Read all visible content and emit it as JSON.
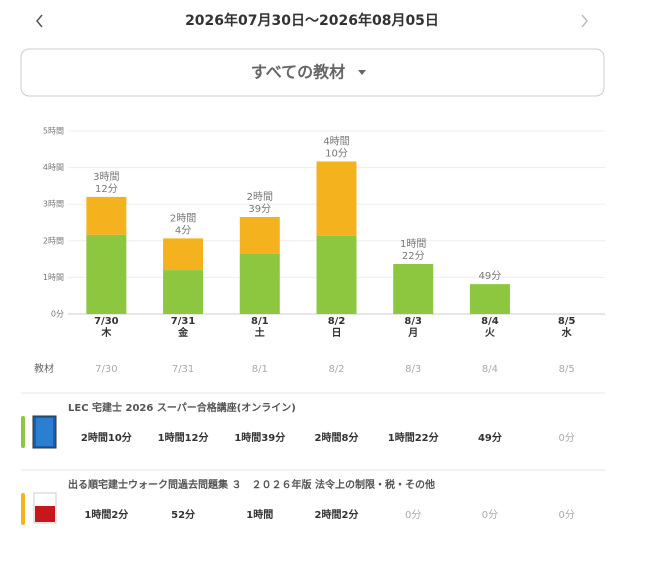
{
  "header": {
    "title": "2026年07月30日〜2026年08月05日",
    "filter": "すべての教材"
  },
  "chart_data": {
    "type": "bar",
    "stacked": true,
    "categories": [
      "7/30",
      "7/31",
      "8/1",
      "8/2",
      "8/3",
      "8/4",
      "8/5"
    ],
    "weekdays": [
      "木",
      "金",
      "土",
      "日",
      "月",
      "火",
      "水"
    ],
    "series": [
      {
        "name": "LEC 宅建士 2026 スーパー合格講座(オンライン)",
        "color": "#8dc63f",
        "values": [
          130,
          72,
          99,
          128,
          82,
          49,
          0
        ]
      },
      {
        "name": "出る順宅建士ウォーク問過去問題集 ３　２０２６年版 法令上の制限・税・その他",
        "color": "#f5b21f",
        "values": [
          62,
          52,
          60,
          122,
          0,
          0,
          0
        ]
      }
    ],
    "total_labels": [
      [
        "3時間",
        "12分"
      ],
      [
        "2時間",
        "4分"
      ],
      [
        "2時間",
        "39分"
      ],
      [
        "4時間",
        "10分"
      ],
      [
        "1時間",
        "22分"
      ],
      [
        "49分"
      ],
      null
    ],
    "ylim": [
      0,
      300
    ],
    "yticks": [
      {
        "value": 0,
        "label": "0分"
      },
      {
        "value": 60,
        "label": "1時間"
      },
      {
        "value": 120,
        "label": "2時間"
      },
      {
        "value": 180,
        "label": "3時間"
      },
      {
        "value": 240,
        "label": "4時間"
      },
      {
        "value": 300,
        "label": "5時間"
      }
    ],
    "grid": true
  },
  "table": {
    "label": "教材",
    "dates": [
      "7/30",
      "7/31",
      "8/1",
      "8/2",
      "8/3",
      "8/4",
      "8/5"
    ],
    "rows": [
      {
        "cells": [
          "2時間10分",
          "1時間12分",
          "1時間39分",
          "2時間8分",
          "1時間22分",
          "49分",
          "0分"
        ]
      },
      {
        "cells": [
          "1時間2分",
          "52分",
          "1時間",
          "2時間2分",
          "0分",
          "0分",
          "0分"
        ]
      }
    ]
  }
}
